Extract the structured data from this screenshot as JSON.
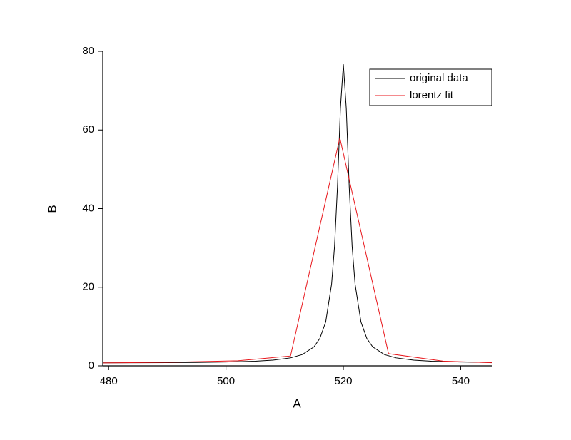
{
  "chart_data": {
    "type": "line",
    "x_label": "A",
    "y_label": "B",
    "xlim": [
      479,
      545.3
    ],
    "ylim": [
      0,
      80
    ],
    "xticks": [
      480,
      500,
      520,
      540
    ],
    "yticks": [
      0,
      20,
      40,
      60,
      80
    ],
    "legend": "upper right",
    "series": [
      {
        "name": "original data",
        "color": "#000000",
        "x": [
          479,
          485,
          490,
          495,
          500,
          505,
          508,
          511,
          513,
          515,
          516,
          517,
          518,
          518.5,
          519,
          519.5,
          520,
          520.5,
          521,
          521.5,
          522,
          523,
          524,
          525,
          527,
          529,
          532,
          535,
          540,
          545.3
        ],
        "values": [
          0.77,
          0.79,
          0.82,
          0.87,
          0.97,
          1.18,
          1.45,
          2.03,
          2.87,
          4.83,
          6.98,
          11.18,
          20.8,
          30.36,
          45.56,
          65.46,
          76.7,
          65.46,
          45.56,
          30.36,
          20.8,
          11.18,
          6.98,
          4.83,
          2.87,
          2.03,
          1.45,
          1.18,
          0.97,
          0.87
        ]
      },
      {
        "name": "lorentz fit",
        "color": "#e8161b",
        "x": [
          479,
          490,
          502,
          511,
          519.4,
          527.7,
          537,
          545.3
        ],
        "values": [
          0.75,
          0.9,
          1.3,
          2.5,
          58,
          3.1,
          1.2,
          0.8
        ]
      }
    ]
  }
}
